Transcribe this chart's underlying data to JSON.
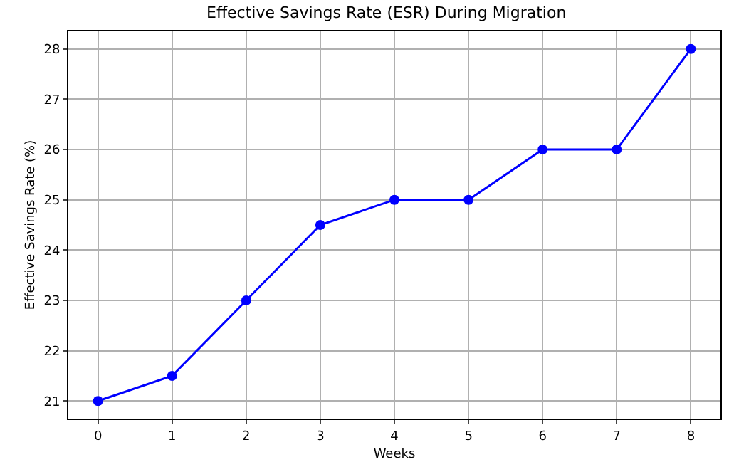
{
  "chart_data": {
    "type": "line",
    "title": "Effective Savings Rate (ESR) During Migration",
    "xlabel": "Weeks",
    "ylabel": "Effective Savings Rate (%)",
    "x": [
      0,
      1,
      2,
      3,
      4,
      5,
      6,
      7,
      8
    ],
    "series": [
      {
        "color": "#0000ff",
        "values": [
          21,
          21.5,
          23,
          24.5,
          25,
          25,
          26,
          26,
          28
        ]
      }
    ],
    "xlim": [
      -0.4,
      8.4
    ],
    "xticks": [
      0,
      1,
      2,
      3,
      4,
      5,
      6,
      7,
      8
    ],
    "ylim": [
      20.65,
      28.35
    ],
    "yticks": [
      21,
      22,
      23,
      24,
      25,
      26,
      27,
      28
    ],
    "grid": true,
    "marker": "circle",
    "line_style": "solid"
  }
}
